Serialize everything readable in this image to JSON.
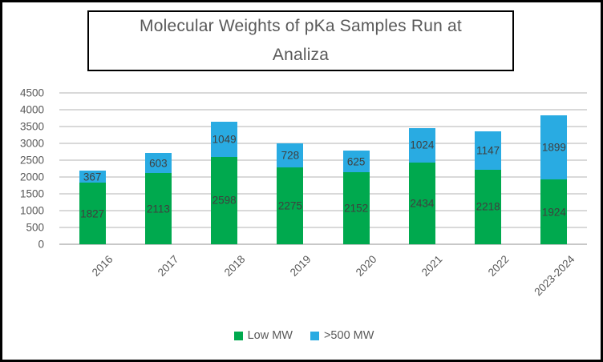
{
  "title": {
    "lines": [
      "Molecular Weights of pKa Samples Run at",
      "Analiza"
    ]
  },
  "legend": {
    "items": [
      {
        "label": "Low MW",
        "color": "#00a94e"
      },
      {
        "label": ">500 MW",
        "color": "#29abe2"
      }
    ]
  },
  "chart_data": {
    "type": "bar",
    "stacked": true,
    "title": "Molecular Weights of pKa Samples Run at Analiza",
    "categories": [
      "2016",
      "2017",
      "2018",
      "2019",
      "2020",
      "2021",
      "2022",
      "2023-2024"
    ],
    "series": [
      {
        "name": "Low MW",
        "color": "#00a94e",
        "values": [
          1827,
          2113,
          2598,
          2275,
          2152,
          2434,
          2218,
          1924
        ]
      },
      {
        "name": ">500 MW",
        "color": "#29abe2",
        "values": [
          367,
          603,
          1049,
          728,
          625,
          1024,
          1147,
          1899
        ]
      }
    ],
    "ylabel": "",
    "xlabel": "",
    "ylim": [
      0,
      4500
    ],
    "ytick_step": 500,
    "grid": true,
    "data_labels": true,
    "legend_position": "bottom",
    "colors": {
      "gridline": "#d9d9d9",
      "axis_text": "#595959",
      "data_label_text": "#3f3f3f"
    }
  }
}
